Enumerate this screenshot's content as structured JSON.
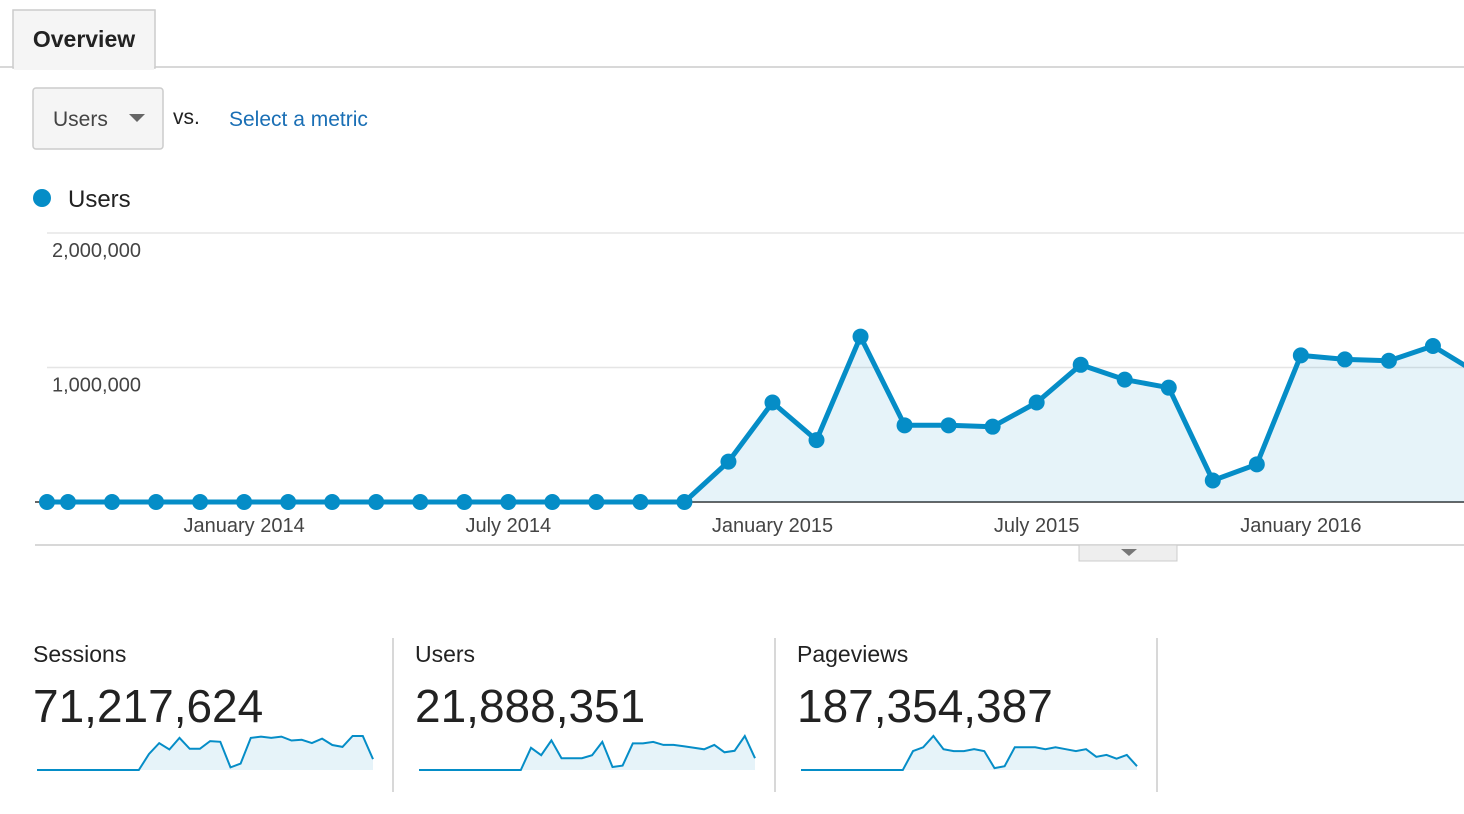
{
  "tab": "Overview",
  "metric_selector": {
    "selected": "Users",
    "vs": "vs.",
    "compare": "Select a metric"
  },
  "chart_data": {
    "type": "line",
    "categories": [
      null,
      null,
      null,
      null,
      null,
      "January 2014",
      null,
      null,
      null,
      null,
      null,
      "July 2014",
      null,
      null,
      null,
      null,
      null,
      "January 2015",
      null,
      null,
      null,
      null,
      null,
      "July 2015",
      null,
      null,
      null,
      null,
      null,
      "January 2016",
      null,
      null,
      null,
      null
    ],
    "series": [
      {
        "name": "Users",
        "color": "#058dc7",
        "values": [
          0,
          0,
          0,
          0,
          0,
          0,
          0,
          0,
          0,
          0,
          0,
          0,
          0,
          0,
          0,
          0,
          300000,
          740000,
          460000,
          1230000,
          570000,
          570000,
          560000,
          740000,
          1020000,
          910000,
          850000,
          160000,
          280000,
          1090000,
          1060000,
          1050000,
          1160000,
          960000
        ]
      }
    ],
    "ylim": [
      0,
      2000000
    ],
    "yticks": [
      {
        "value": 1000000,
        "label": "1,000,000"
      },
      {
        "value": 2000000,
        "label": "2,000,000"
      }
    ],
    "grid": true
  },
  "scorecards": [
    {
      "label": "Sessions",
      "value": "71,217,624",
      "sparkline": [
        0,
        0,
        0,
        0,
        0,
        0,
        0,
        0,
        0,
        0,
        0,
        2500000,
        4200000,
        3200000,
        5000000,
        3300000,
        3300000,
        4500000,
        4400000,
        400000,
        1000000,
        5000000,
        5200000,
        5000000,
        5200000,
        4600000,
        4700000,
        4200000,
        4900000,
        3900000,
        3600000,
        5300000,
        5300000,
        1700000
      ]
    },
    {
      "label": "Users",
      "value": "21,888,351",
      "sparkline": [
        0,
        0,
        0,
        0,
        0,
        0,
        0,
        0,
        0,
        0,
        0,
        1500000,
        1000000,
        2000000,
        800000,
        800000,
        800000,
        1000000,
        1900000,
        200000,
        300000,
        1800000,
        1800000,
        1900000,
        1700000,
        1700000,
        1600000,
        1500000,
        1400000,
        1700000,
        1200000,
        1300000,
        2300000,
        800000
      ]
    },
    {
      "label": "Pageviews",
      "value": "187,354,387",
      "sparkline": [
        0,
        0,
        0,
        0,
        0,
        0,
        0,
        0,
        0,
        0,
        0,
        10000000,
        12000000,
        18000000,
        11000000,
        10000000,
        10000000,
        11000000,
        10000000,
        1000000,
        2000000,
        12000000,
        12000000,
        12000000,
        11000000,
        12000000,
        11000000,
        10000000,
        11000000,
        7000000,
        8000000,
        6000000,
        8000000,
        2000000
      ]
    }
  ]
}
